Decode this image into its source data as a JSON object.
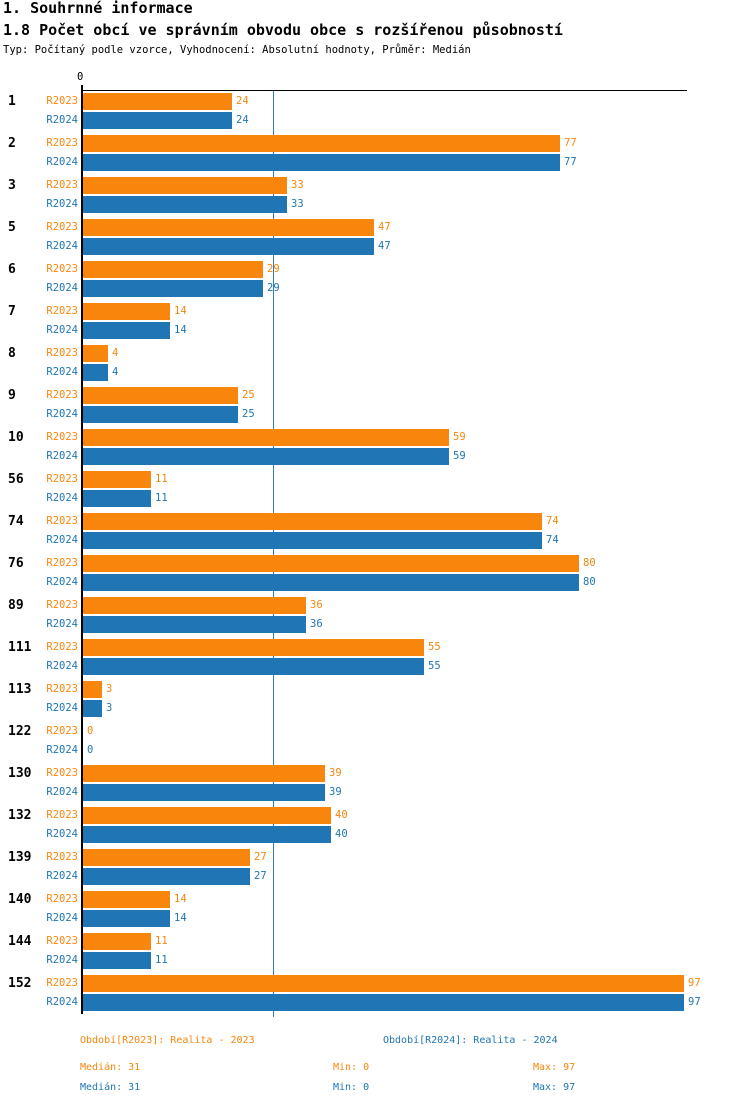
{
  "header": {
    "title": "1. Souhrnné informace",
    "subtitle": "1.8 Počet obcí ve správním obvodu obce s rozšířenou působností",
    "meta": "Typ: Počítaný podle vzorce, Vyhodnocení: Absolutní hodnoty, Průměr: Medián"
  },
  "colors": {
    "series_2023": "#f8860d",
    "series_2024": "#2076b4",
    "median_line": "#2e7eb3",
    "axis": "#000000"
  },
  "chart_data": {
    "type": "bar",
    "orientation": "horizontal",
    "title": "1.8 Počet obcí ve správním obvodu obce s rozšířenou působností",
    "categories": [
      "1",
      "2",
      "3",
      "5",
      "6",
      "7",
      "8",
      "9",
      "10",
      "56",
      "74",
      "76",
      "89",
      "111",
      "113",
      "122",
      "130",
      "132",
      "139",
      "140",
      "144",
      "152"
    ],
    "series": [
      {
        "name": "R2023",
        "color": "#f8860d",
        "values": [
          24,
          77,
          33,
          47,
          29,
          14,
          4,
          25,
          59,
          11,
          74,
          80,
          36,
          55,
          3,
          0,
          39,
          40,
          27,
          14,
          11,
          97
        ]
      },
      {
        "name": "R2024",
        "color": "#2076b4",
        "values": [
          24,
          77,
          33,
          47,
          29,
          14,
          4,
          25,
          59,
          11,
          74,
          80,
          36,
          55,
          3,
          0,
          39,
          40,
          27,
          14,
          11,
          97
        ]
      }
    ],
    "x_axis": {
      "zero_label": "0",
      "min": 0,
      "max": 97
    },
    "median": 31,
    "grid": false,
    "legend_position": "bottom"
  },
  "legend": {
    "r2023": "Období[R2023]: Realita - 2023",
    "r2024": "Období[R2024]: Realita - 2024"
  },
  "stats": {
    "r2023": {
      "median": "Medián: 31",
      "min": "Min: 0",
      "max": "Max: 97"
    },
    "r2024": {
      "median": "Medián: 31",
      "min": "Min: 0",
      "max": "Max: 97"
    }
  }
}
